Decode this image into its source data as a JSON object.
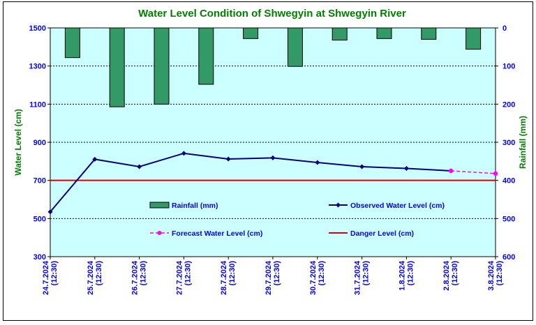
{
  "chart_data": {
    "type": "bar",
    "title": "Water Level Condition of Shwegyin at Shwegyin River",
    "ylabel_left": "Water Level (cm)",
    "ylabel_right": "Rainfall (mm)",
    "y_left_range": [
      300,
      1500
    ],
    "y_left_ticks": [
      "300",
      "500",
      "700",
      "900",
      "1100",
      "1300",
      "1500"
    ],
    "y_right_range": [
      0,
      600
    ],
    "y_right_reversed": true,
    "y_right_ticks": [
      "0",
      "100",
      "200",
      "300",
      "400",
      "500",
      "600"
    ],
    "categories": [
      "24.7.2024 (12:30)",
      "25.7.2024 (12:30)",
      "26.7.2024 (12:30)",
      "27.7.2024 (12:30)",
      "28.7.2024 (12:30)",
      "29.7.2024 (12:30)",
      "30.7.2024 (12:30)",
      "31.7.2024 (12:30)",
      "1.8.2024 (12:30)",
      "2.8.2024 (12:30)",
      "3.8.2024 (12:30)"
    ],
    "series": [
      {
        "name": "Rainfall (mm)",
        "type": "bar",
        "axis": "right",
        "color": "#339966",
        "values": [
          78,
          207,
          200,
          148,
          28,
          101,
          32,
          28,
          30,
          56,
          null
        ]
      },
      {
        "name": "Observed Water Level (cm)",
        "type": "line",
        "axis": "left",
        "color": "#000080",
        "values": [
          535,
          811,
          772,
          842,
          812,
          818,
          794,
          772,
          763,
          750,
          null
        ]
      },
      {
        "name": "Forecast Water Level (cm)",
        "type": "line",
        "axis": "left",
        "color": "#ff00ff",
        "dashed": true,
        "values": [
          null,
          null,
          null,
          null,
          null,
          null,
          null,
          null,
          null,
          750,
          736
        ]
      },
      {
        "name": "Danger Level (cm)",
        "type": "line",
        "axis": "left",
        "color": "#dd0000",
        "values": [
          700,
          700,
          700,
          700,
          700,
          700,
          700,
          700,
          700,
          700,
          700
        ]
      }
    ],
    "legend": "inside-plot-bottom",
    "grid": true,
    "colors": {
      "plot_background": "#ccffff",
      "title": "#008000",
      "axis_text": "#0000ff"
    }
  }
}
